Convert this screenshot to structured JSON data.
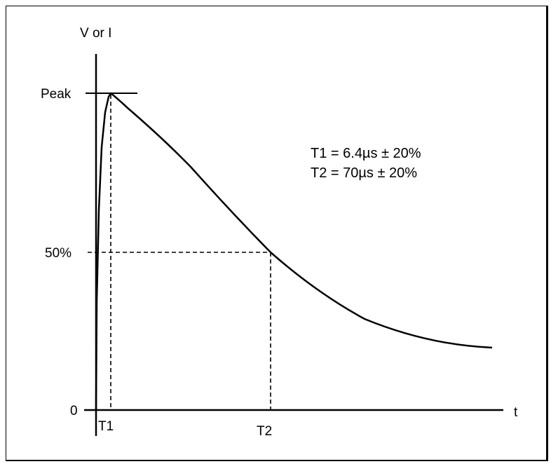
{
  "diagram": {
    "y_axis_label": "V or I",
    "x_axis_label": "t",
    "y_ticks": {
      "peak": "Peak",
      "half": "50%",
      "zero": "0"
    },
    "x_ticks": {
      "t1": "T1",
      "t2": "T2"
    },
    "annotations": [
      "T1 = 6.4µs ± 20%",
      "T2 = 70µs ± 20%"
    ],
    "curve_type": "double-exponential impulse waveform",
    "colors": {
      "line": "#000000",
      "background": "#ffffff"
    }
  }
}
